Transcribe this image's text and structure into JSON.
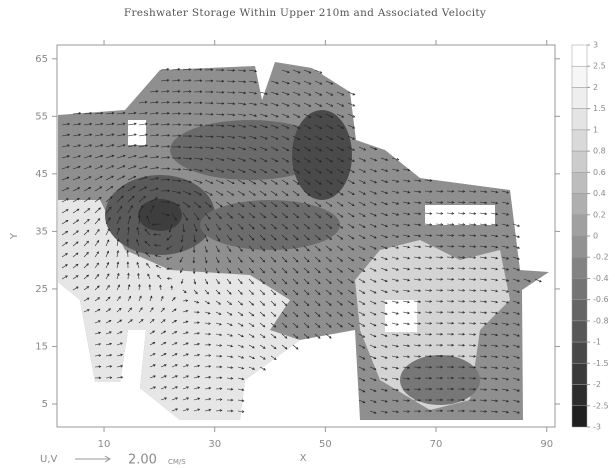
{
  "chart_data": {
    "type": "contour",
    "title": "Freshwater Storage Within Upper 210m and Associated Velocity",
    "xlabel": "X",
    "ylabel": "Y",
    "xlim": [
      1.5,
      91.5
    ],
    "ylim": [
      1,
      67.4
    ],
    "xticks": [
      10,
      30,
      50,
      70,
      90
    ],
    "yticks": [
      5,
      15,
      25,
      35,
      45,
      55,
      65
    ],
    "colorbar": {
      "levels": [
        3,
        2.5,
        2,
        1.5,
        1,
        0.8,
        0.6,
        0.4,
        0.2,
        0,
        -0.2,
        -0.4,
        -0.6,
        -0.8,
        -1,
        -1.5,
        -2,
        -2.5,
        -3
      ],
      "colors": [
        "#ffffff",
        "#f6f6f6",
        "#eeeeee",
        "#e4e4e4",
        "#d9d9d9",
        "#cccccc",
        "#bdbdbd",
        "#afafaf",
        "#a0a0a0",
        "#929292",
        "#838383",
        "#747474",
        "#656565",
        "#575757",
        "#484848",
        "#3a3a3a",
        "#2d2d2d",
        "#202020"
      ]
    },
    "vector_key": {
      "label": "U,V",
      "magnitude": {
        "value": 2,
        "label": "2.00"
      },
      "units": "CM/S"
    }
  }
}
